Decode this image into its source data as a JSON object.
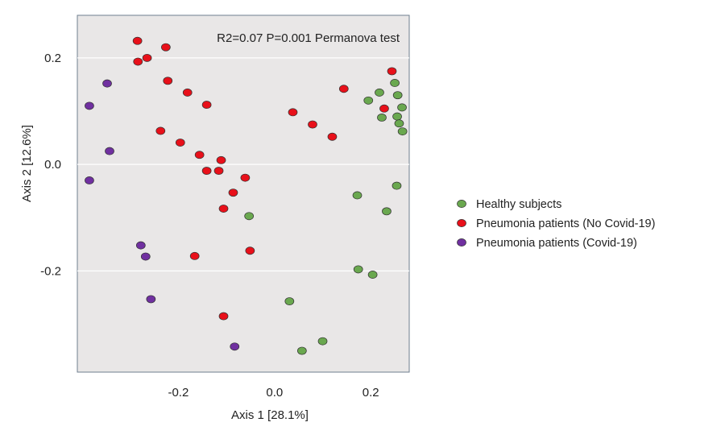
{
  "chart_data": {
    "type": "scatter",
    "title": "",
    "annotation": "R2=0.07 P=0.001 Permanova test",
    "xlabel": "Axis 1 [28.1%]",
    "ylabel": "Axis 2 [12.6%]",
    "xlim": [
      -0.41,
      0.28
    ],
    "ylim": [
      -0.39,
      0.28
    ],
    "xticks": [
      -0.2,
      0.0,
      0.2
    ],
    "xtick_labels": [
      "-0.2",
      "0.0",
      "0.2"
    ],
    "yticks": [
      0.2,
      0.0,
      -0.2
    ],
    "ytick_labels": [
      "0.2",
      "0.0",
      "-0.2"
    ],
    "grid": "horizontal",
    "legend_position": "right",
    "series": [
      {
        "name": "Healthy subjects",
        "color": "#6aa84f",
        "points": [
          [
            0.195,
            0.12
          ],
          [
            0.218,
            0.135
          ],
          [
            0.25,
            0.153
          ],
          [
            0.256,
            0.13
          ],
          [
            0.265,
            0.107
          ],
          [
            0.223,
            0.088
          ],
          [
            0.255,
            0.09
          ],
          [
            0.259,
            0.077
          ],
          [
            0.266,
            0.062
          ],
          [
            0.172,
            -0.058
          ],
          [
            0.254,
            -0.04
          ],
          [
            0.233,
            -0.088
          ],
          [
            -0.053,
            -0.097
          ],
          [
            0.174,
            -0.197
          ],
          [
            0.204,
            -0.207
          ],
          [
            0.031,
            -0.257
          ],
          [
            0.1,
            -0.332
          ],
          [
            0.057,
            -0.35
          ]
        ]
      },
      {
        "name": "Pneumonia patients (No Covid-19)",
        "color": "#e8101a",
        "points": [
          [
            -0.285,
            0.232
          ],
          [
            -0.226,
            0.22
          ],
          [
            -0.265,
            0.2
          ],
          [
            -0.284,
            0.193
          ],
          [
            -0.222,
            0.157
          ],
          [
            -0.181,
            0.135
          ],
          [
            -0.141,
            0.112
          ],
          [
            -0.237,
            0.063
          ],
          [
            -0.196,
            0.041
          ],
          [
            -0.156,
            0.018
          ],
          [
            -0.111,
            0.008
          ],
          [
            -0.141,
            -0.012
          ],
          [
            -0.116,
            -0.012
          ],
          [
            -0.061,
            -0.025
          ],
          [
            -0.086,
            -0.053
          ],
          [
            -0.106,
            -0.083
          ],
          [
            -0.166,
            -0.172
          ],
          [
            -0.051,
            -0.162
          ],
          [
            -0.106,
            -0.285
          ],
          [
            0.038,
            0.098
          ],
          [
            0.079,
            0.075
          ],
          [
            0.12,
            0.052
          ],
          [
            0.144,
            0.142
          ],
          [
            0.244,
            0.175
          ],
          [
            0.228,
            0.105
          ]
        ]
      },
      {
        "name": "Pneumonia patients (Covid-19)",
        "color": "#7030a0",
        "points": [
          [
            -0.348,
            0.152
          ],
          [
            -0.385,
            0.11
          ],
          [
            -0.343,
            0.025
          ],
          [
            -0.385,
            -0.03
          ],
          [
            -0.278,
            -0.152
          ],
          [
            -0.268,
            -0.173
          ],
          [
            -0.257,
            -0.253
          ],
          [
            -0.083,
            -0.342
          ]
        ]
      }
    ]
  }
}
